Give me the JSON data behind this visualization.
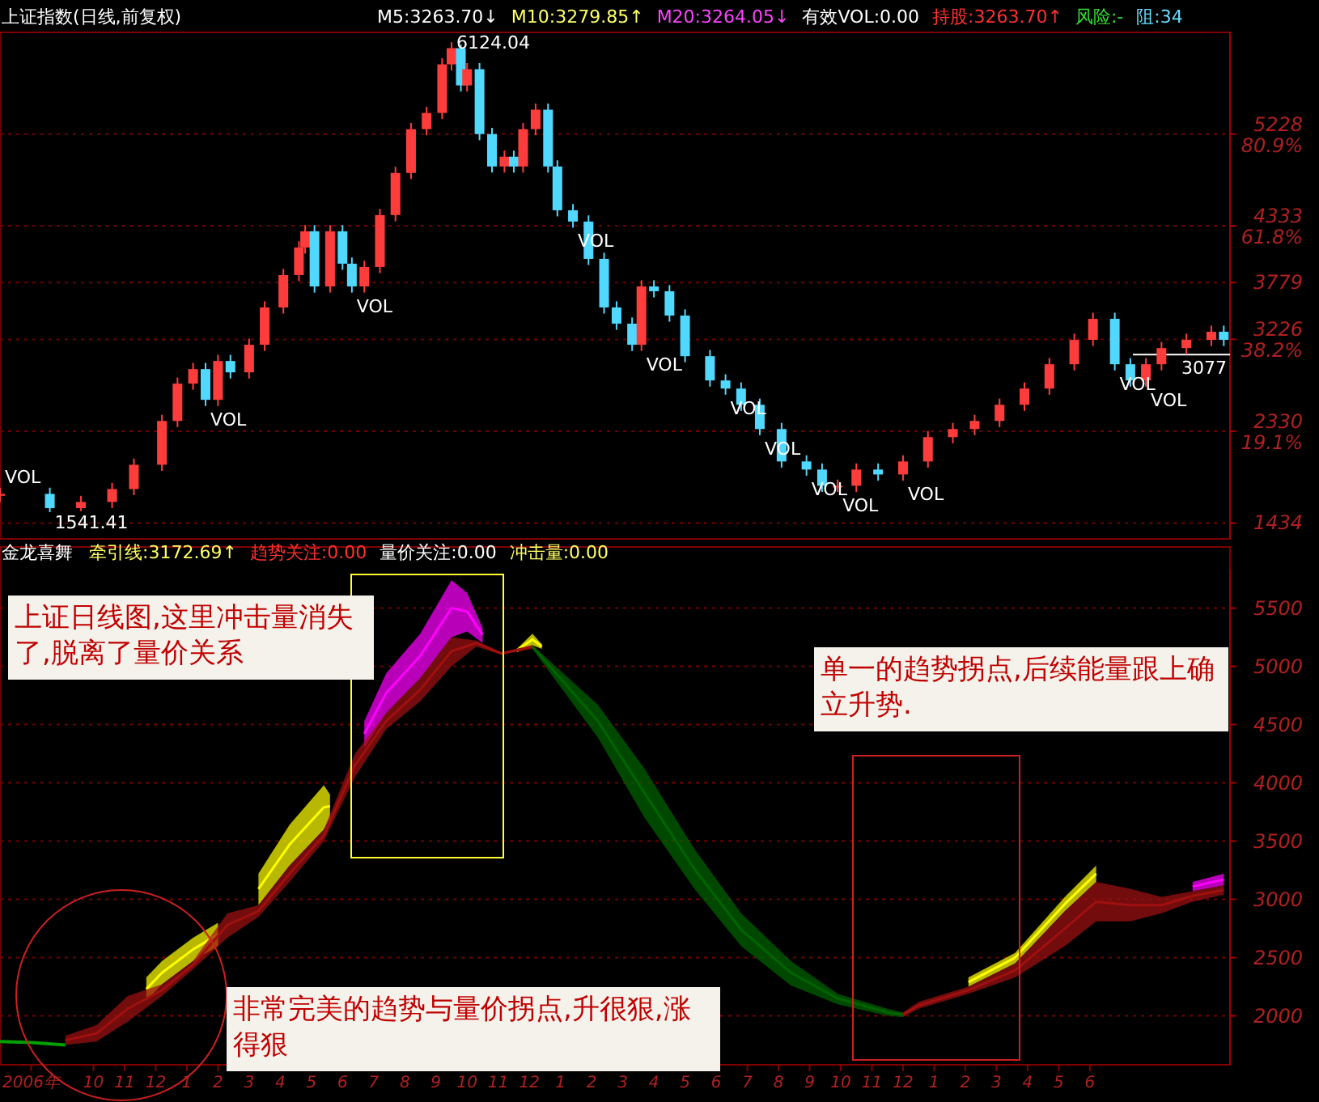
{
  "chart_data": [
    {
      "type": "candlestick",
      "title": "上证指数(日线,前复权)",
      "xlim": [
        "2006-07-01",
        "2009-10-16"
      ],
      "ylim": [
        1280,
        6220
      ],
      "tick_labels": "y",
      "grid": "y",
      "yticks": [
        {
          "value": 5228,
          "label": "5228\n80.9%"
        },
        {
          "value": 4333,
          "label": "4333\n61.8%"
        },
        3779,
        {
          "value": 3226,
          "label": "3226\n38.2%"
        },
        {
          "value": 2330,
          "label": "2330\n19.1%"
        },
        1434
      ],
      "x": [
        "2006-07-01",
        "2006-08-19",
        "2006-09-19",
        "2006-10-19",
        "2006-11-10",
        "2006-12-07",
        "2006-12-22",
        "2007-01-07",
        "2007-01-19",
        "2007-02-01",
        "2007-02-13",
        "2007-03-01",
        "2007-03-16",
        "2007-04-04",
        "2007-04-19",
        "2007-04-25",
        "2007-05-04",
        "2007-05-19",
        "2007-06-01",
        "2007-06-10",
        "2007-06-22",
        "2007-07-07",
        "2007-07-22",
        "2007-08-07",
        "2007-08-22",
        "2007-09-07",
        "2007-09-16",
        "2007-09-25",
        "2007-10-01",
        "2007-10-13",
        "2007-10-25",
        "2007-11-07",
        "2007-11-16",
        "2007-11-25",
        "2007-12-07",
        "2007-12-19",
        "2007-12-28",
        "2008-01-13",
        "2008-01-28",
        "2008-02-13",
        "2008-02-25",
        "2008-03-10",
        "2008-03-19",
        "2008-04-01",
        "2008-04-16",
        "2008-05-01",
        "2008-05-25",
        "2008-06-10",
        "2008-06-25",
        "2008-07-13",
        "2008-08-04",
        "2008-08-28",
        "2008-09-13",
        "2008-09-28",
        "2008-10-16",
        "2008-11-07",
        "2008-12-01",
        "2008-12-25",
        "2009-01-19",
        "2009-02-10",
        "2009-03-04",
        "2009-03-28",
        "2009-04-22",
        "2009-05-16",
        "2009-06-04",
        "2009-06-25",
        "2009-07-10",
        "2009-07-25",
        "2009-08-10",
        "2009-09-04",
        "2009-09-28",
        "2009-10-10"
      ],
      "ohlc": [
        [
          1700,
          1779,
          1640,
          1719
        ],
        [
          1719,
          1779,
          1541,
          1580
        ],
        [
          1580,
          1700,
          1550,
          1640
        ],
        [
          1640,
          1826,
          1580,
          1766
        ],
        [
          1766,
          2063,
          1706,
          2003
        ],
        [
          2003,
          2490,
          1943,
          2430
        ],
        [
          2430,
          2854,
          2370,
          2794
        ],
        [
          2794,
          2996,
          2734,
          2936
        ],
        [
          2936,
          2996,
          2576,
          2636
        ],
        [
          2636,
          3075,
          2576,
          3015
        ],
        [
          3015,
          3075,
          2844,
          2904
        ],
        [
          2904,
          3233,
          2844,
          3173
        ],
        [
          3173,
          3597,
          3113,
          3537
        ],
        [
          3537,
          3913,
          3477,
          3853
        ],
        [
          3853,
          4182,
          3793,
          4122
        ],
        [
          4122,
          4340,
          4062,
          4280
        ],
        [
          4280,
          4340,
          3682,
          3742
        ],
        [
          3742,
          4340,
          3682,
          4280
        ],
        [
          4280,
          4340,
          3904,
          3964
        ],
        [
          3964,
          4024,
          3682,
          3742
        ],
        [
          3742,
          3992,
          3682,
          3932
        ],
        [
          3932,
          4498,
          3872,
          4438
        ],
        [
          4438,
          4909,
          4378,
          4849
        ],
        [
          4849,
          5336,
          4789,
          5276
        ],
        [
          5276,
          5494,
          5216,
          5434
        ],
        [
          5434,
          5968,
          5374,
          5908
        ],
        [
          5908,
          6124,
          5848,
          6066
        ],
        [
          6066,
          6100,
          5643,
          5703
        ],
        [
          5703,
          5921,
          5643,
          5861
        ],
        [
          5861,
          5921,
          5168,
          5228
        ],
        [
          5228,
          5288,
          4852,
          4912
        ],
        [
          4912,
          5067,
          4852,
          5007
        ],
        [
          5007,
          5067,
          4852,
          4912
        ],
        [
          4912,
          5336,
          4852,
          5276
        ],
        [
          5276,
          5526,
          5216,
          5466
        ],
        [
          5466,
          5526,
          4852,
          4912
        ],
        [
          4912,
          4972,
          4425,
          4485
        ],
        [
          4485,
          4545,
          4315,
          4375
        ],
        [
          4375,
          4435,
          3951,
          4011
        ],
        [
          4011,
          4071,
          3477,
          3537
        ],
        [
          3537,
          3597,
          3319,
          3379
        ],
        [
          3379,
          3439,
          3113,
          3173
        ],
        [
          3173,
          3802,
          3113,
          3742
        ],
        [
          3742,
          3802,
          3635,
          3695
        ],
        [
          3695,
          3755,
          3398,
          3458
        ],
        [
          3458,
          3518,
          3002,
          3062
        ],
        [
          3062,
          3122,
          2765,
          2825
        ],
        [
          2825,
          2885,
          2686,
          2746
        ],
        [
          2746,
          2806,
          2528,
          2588
        ],
        [
          2588,
          2648,
          2291,
          2351
        ],
        [
          2351,
          2411,
          1975,
          2035
        ],
        [
          2035,
          2095,
          1896,
          1956
        ],
        [
          1956,
          2016,
          1738,
          1798
        ],
        [
          1798,
          1858,
          1738,
          1798
        ],
        [
          1798,
          2016,
          1738,
          1956
        ],
        [
          1956,
          2016,
          1848,
          1908
        ],
        [
          1908,
          2095,
          1848,
          2035
        ],
        [
          2035,
          2332,
          1975,
          2272
        ],
        [
          2272,
          2411,
          2212,
          2351
        ],
        [
          2351,
          2490,
          2291,
          2430
        ],
        [
          2430,
          2648,
          2370,
          2588
        ],
        [
          2588,
          2806,
          2528,
          2746
        ],
        [
          2746,
          3043,
          2686,
          2983
        ],
        [
          2983,
          3281,
          2923,
          3221
        ],
        [
          3221,
          3486,
          3161,
          3426
        ],
        [
          3426,
          3486,
          2923,
          2983
        ],
        [
          2983,
          3043,
          2765,
          2825
        ],
        [
          2825,
          3043,
          2765,
          2983
        ],
        [
          2983,
          3201,
          2923,
          3141
        ],
        [
          3141,
          3281,
          3081,
          3221
        ],
        [
          3221,
          3360,
          3161,
          3300
        ],
        [
          3300,
          3360,
          3161,
          3221
        ]
      ],
      "ref_lines": [
        {
          "axis": "y",
          "value": 3077,
          "label": "3077",
          "color": "#ffffff"
        }
      ],
      "annotations": [
        "M5:3263.70↓",
        "M10:3279.85↑",
        "M20:3264.05↓",
        "有效VOL:0.00",
        "持股:3263.70↑",
        "风险:-",
        "阻:34",
        {
          "text": "6124.04",
          "x": "2007-09-16",
          "y": 6124
        },
        {
          "text": "1541.41",
          "x": "2006-08-19",
          "y": 1541
        },
        {
          "text": "VOL",
          "x": "2006-07-01",
          "y": 1779
        },
        {
          "text": "VOL",
          "x": "2007-01-19",
          "y": 2576
        },
        {
          "text": "VOL",
          "x": "2007-06-10",
          "y": 3682
        },
        {
          "text": "VOL",
          "x": "2008-01-13",
          "y": 4315
        },
        {
          "text": "VOL",
          "x": "2008-03-19",
          "y": 3113
        },
        {
          "text": "VOL",
          "x": "2008-06-10",
          "y": 2686
        },
        {
          "text": "VOL",
          "x": "2008-07-13",
          "y": 2291
        },
        {
          "text": "VOL",
          "x": "2008-08-28",
          "y": 1896
        },
        {
          "text": "VOL",
          "x": "2008-09-28",
          "y": 1738
        },
        {
          "text": "VOL",
          "x": "2008-12-01",
          "y": 1848
        },
        {
          "text": "VOL",
          "x": "2009-06-25",
          "y": 2923
        },
        {
          "text": "VOL",
          "x": "2009-07-25",
          "y": 2765
        }
      ]
    },
    {
      "type": "line",
      "title": "金龙喜舞",
      "xlim": [
        "2006-07-01",
        "2009-10-16"
      ],
      "ylim": [
        1580,
        5830
      ],
      "grid": "y",
      "yticks": [
        2000,
        2500,
        3000,
        3500,
        4000,
        4500,
        5000,
        5500
      ],
      "xticks": [
        {
          "value": "2006-08",
          "label": "2006年"
        },
        {
          "value": "2006-10",
          "label": "10"
        },
        {
          "value": "2006-11",
          "label": "11"
        },
        {
          "value": "2006-12",
          "label": "12"
        },
        {
          "value": "2007-01",
          "label": "1"
        },
        {
          "value": "2007-02",
          "label": "2"
        },
        {
          "value": "2007-03",
          "label": "3"
        },
        {
          "value": "2007-04",
          "label": "4"
        },
        {
          "value": "2007-05",
          "label": "5"
        },
        {
          "value": "2007-06",
          "label": "6"
        },
        {
          "value": "2007-07",
          "label": "7"
        },
        {
          "value": "2007-08",
          "label": "8"
        },
        {
          "value": "2007-09",
          "label": "9"
        },
        {
          "value": "2007-10",
          "label": "10"
        },
        {
          "value": "2007-11",
          "label": "11"
        },
        {
          "value": "2007-12",
          "label": "12"
        },
        {
          "value": "2008-01",
          "label": "1"
        },
        {
          "value": "2008-02",
          "label": "2"
        },
        {
          "value": "2008-03",
          "label": "3"
        },
        {
          "value": "2008-04",
          "label": "4"
        },
        {
          "value": "2008-05",
          "label": "5"
        },
        {
          "value": "2008-06",
          "label": "6"
        },
        {
          "value": "2008-07",
          "label": "7"
        },
        {
          "value": "2008-08",
          "label": "8"
        },
        {
          "value": "2008-09",
          "label": "9"
        },
        {
          "value": "2008-10",
          "label": "10"
        },
        {
          "value": "2008-11",
          "label": "11"
        },
        {
          "value": "2008-12",
          "label": "12"
        },
        {
          "value": "2009-01",
          "label": "1"
        },
        {
          "value": "2009-02",
          "label": "2"
        },
        {
          "value": "2009-03",
          "label": "3"
        },
        {
          "value": "2009-04",
          "label": "4"
        },
        {
          "value": "2009-05",
          "label": "5"
        },
        {
          "value": "2009-06",
          "label": "6"
        }
      ],
      "series": [
        {
          "type": "line",
          "color": "#00a000",
          "x": [
            "2006-07-01",
            "2006-08-01",
            "2006-09-04"
          ],
          "values": [
            1780,
            1770,
            1750
          ]
        },
        {
          "type": "line",
          "color": "#ffff00",
          "x": [
            "2006-11-22",
            "2006-12-07",
            "2007-01-07",
            "2007-02-01"
          ],
          "values": [
            2230,
            2370,
            2570,
            2700
          ],
          "upper": [
            2330,
            2470,
            2670,
            2800
          ],
          "lower": [
            2130,
            2270,
            2470,
            2600
          ]
        },
        {
          "type": "line",
          "color": "#ffff00",
          "x": [
            "2007-03-10",
            "2007-04-10",
            "2007-05-13",
            "2007-05-19"
          ],
          "values": [
            3090,
            3470,
            3790,
            3800
          ],
          "upper": [
            3220,
            3640,
            3980,
            3900
          ],
          "lower": [
            2950,
            3290,
            3600,
            3700
          ]
        },
        {
          "type": "line",
          "color": "#ff00ff",
          "x": [
            "2007-06-22",
            "2007-07-13",
            "2007-08-16",
            "2007-09-16",
            "2007-10-01",
            "2007-10-16"
          ],
          "values": [
            4420,
            4770,
            5090,
            5500,
            5470,
            5270
          ],
          "upper": [
            4530,
            4940,
            5280,
            5740,
            5630,
            5330
          ],
          "lower": [
            4300,
            4600,
            4900,
            5250,
            5300,
            5200
          ]
        },
        {
          "type": "line",
          "color": "#ffff00",
          "x": [
            "2007-11-19",
            "2007-12-04",
            "2007-12-13"
          ],
          "values": [
            5140,
            5230,
            5170
          ],
          "upper": [
            5150,
            5280,
            5190
          ],
          "lower": [
            5120,
            5180,
            5150
          ]
        },
        {
          "type": "line",
          "color": "#ffff00",
          "x": [
            "2009-02-04",
            "2009-03-19",
            "2009-05-07",
            "2009-06-07"
          ],
          "values": [
            2290,
            2500,
            2960,
            3220
          ],
          "upper": [
            2330,
            2540,
            3020,
            3290
          ],
          "lower": [
            2250,
            2450,
            2900,
            3150
          ]
        },
        {
          "type": "line",
          "color": "#ff00ff",
          "x": [
            "2009-09-10",
            "2009-10-10"
          ],
          "values": [
            3110,
            3170
          ],
          "upper": [
            3150,
            3220
          ],
          "lower": [
            3070,
            3120
          ]
        },
        {
          "type": "line",
          "color": "#a01010",
          "x": [
            "2006-09-04",
            "2006-10-04",
            "2006-11-04",
            "2006-12-07",
            "2007-01-07",
            "2007-02-10",
            "2007-03-10",
            "2007-04-10",
            "2007-05-13",
            "2007-06-13",
            "2007-07-13",
            "2007-08-16",
            "2007-09-16",
            "2007-10-10",
            "2007-11-04",
            "2007-12-04"
          ],
          "values": [
            1790,
            1850,
            2060,
            2220,
            2440,
            2780,
            2900,
            3220,
            3550,
            4150,
            4530,
            4800,
            5130,
            5200,
            5110,
            5170
          ],
          "upper": [
            1830,
            1920,
            2170,
            2270,
            2470,
            2880,
            2950,
            3290,
            3600,
            4250,
            4600,
            4900,
            5250,
            5220,
            5120,
            5180
          ],
          "lower": [
            1750,
            1780,
            1950,
            2170,
            2400,
            2670,
            2850,
            3150,
            3500,
            4050,
            4460,
            4700,
            5000,
            5170,
            5100,
            5150
          ]
        },
        {
          "type": "line",
          "color": "#006400",
          "x": [
            "2007-12-04",
            "2008-02-07",
            "2008-03-22",
            "2008-05-10",
            "2008-06-25",
            "2008-08-13",
            "2008-09-28",
            "2008-11-16",
            "2008-12-01"
          ],
          "values": [
            5170,
            4530,
            3910,
            3260,
            2740,
            2370,
            2150,
            2030,
            2010
          ],
          "upper": [
            5180,
            4670,
            4120,
            3430,
            2880,
            2470,
            2190,
            2060,
            2030
          ],
          "lower": [
            5150,
            4390,
            3700,
            3090,
            2600,
            2260,
            2100,
            2000,
            1990
          ]
        },
        {
          "type": "line",
          "color": "#a01010",
          "x": [
            "2008-12-01",
            "2008-12-16",
            "2009-02-04",
            "2009-03-19",
            "2009-05-07",
            "2009-06-07",
            "2009-07-10",
            "2009-08-10",
            "2009-09-10",
            "2009-10-10"
          ],
          "values": [
            2010,
            2090,
            2220,
            2390,
            2750,
            2980,
            2950,
            2950,
            3030,
            3080
          ],
          "upper": [
            2030,
            2120,
            2250,
            2450,
            2900,
            3150,
            3090,
            3020,
            3070,
            3120
          ],
          "lower": [
            1990,
            2060,
            2190,
            2330,
            2600,
            2810,
            2810,
            2880,
            2980,
            3040
          ]
        }
      ],
      "annotations": [
        "牵引线:3172.69↑",
        "趋势关注:0.00",
        "量价关注:0.00",
        "冲击量:0.00",
        "上证日线图,这里冲击量消失了,脱离了量价关系",
        "单一的趋势拐点,后续能量跟上确立升势.",
        "非常完美的趋势与量价拐点,升很狠,涨得狠"
      ]
    }
  ]
}
